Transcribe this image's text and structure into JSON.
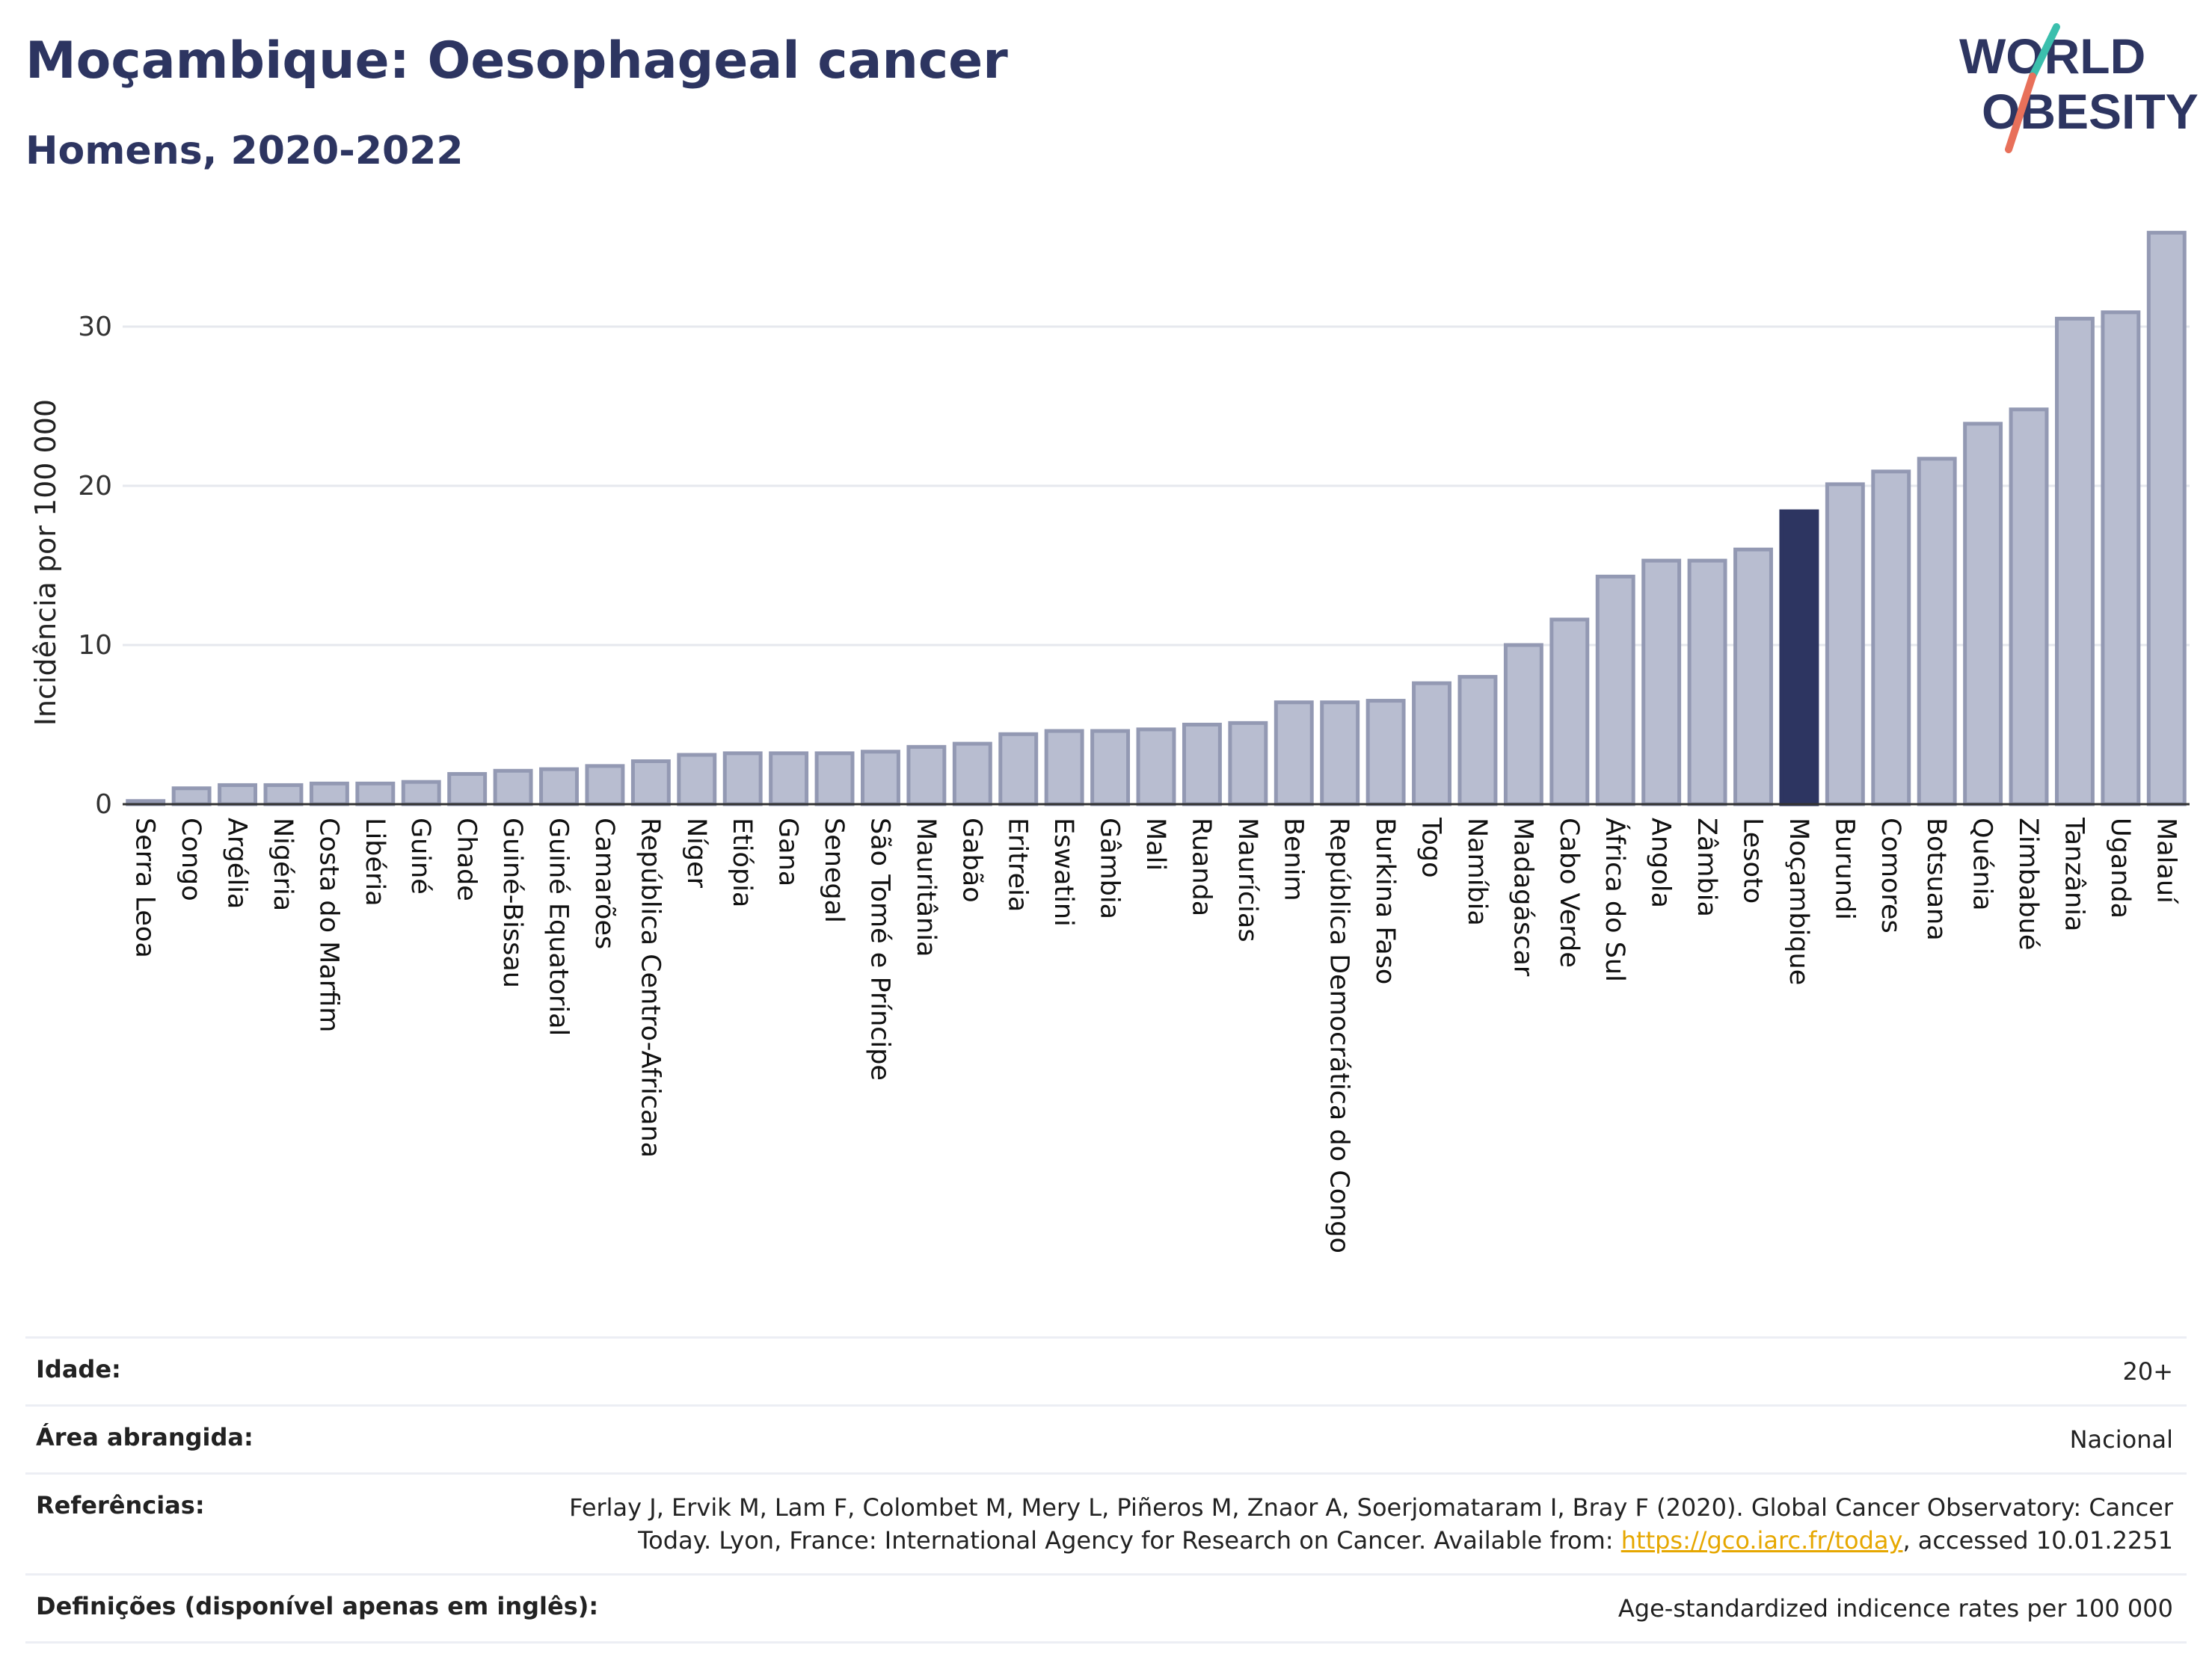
{
  "title": "Moçambique: Oesophageal cancer",
  "subtitle": "Homens, 2020-2022",
  "logo": {
    "line1": "WORLD",
    "line2": "OBESITY",
    "colors": [
      "#2d3561",
      "#3bbfad",
      "#e8705a"
    ]
  },
  "colors": {
    "bar": "#b8bdd0",
    "bar_edge": "#9399b3",
    "highlight": "#2d3561",
    "grid": "#e6e8ee",
    "axis": "#333333"
  },
  "chart_data": {
    "type": "bar",
    "ylabel": "Incidência por 100 000",
    "ylim": [
      0,
      36
    ],
    "yticks": [
      0,
      10,
      20,
      30
    ],
    "highlight": "Moçambique",
    "grid": true,
    "categories": [
      "Serra Leoa",
      "Congo",
      "Argélia",
      "Nigéria",
      "Costa do Marfim",
      "Libéria",
      "Guiné",
      "Chade",
      "Guiné-Bissau",
      "Guiné Equatorial",
      "Camarões",
      "República Centro-Africana",
      "Níger",
      "Etiópia",
      "Gana",
      "Senegal",
      "São Tomé e Príncipe",
      "Mauritânia",
      "Gabão",
      "Eritreia",
      "Eswatini",
      "Gâmbia",
      "Mali",
      "Ruanda",
      "Maurícias",
      "Benim",
      "República Democrática do Congo",
      "Burkina Faso",
      "Togo",
      "Namíbia",
      "Madagáscar",
      "Cabo Verde",
      "África do Sul",
      "Angola",
      "Zâmbia",
      "Lesoto",
      "Moçambique",
      "Burundi",
      "Comores",
      "Botsuana",
      "Quénia",
      "Zimbabué",
      "Tanzânia",
      "Uganda",
      "Malauí"
    ],
    "values": [
      0.2,
      1.0,
      1.2,
      1.2,
      1.3,
      1.3,
      1.4,
      1.9,
      2.1,
      2.2,
      2.4,
      2.7,
      3.1,
      3.2,
      3.2,
      3.2,
      3.3,
      3.6,
      3.8,
      4.4,
      4.6,
      4.6,
      4.7,
      5.0,
      5.1,
      6.4,
      6.4,
      6.5,
      7.6,
      8.0,
      10.0,
      11.6,
      14.3,
      15.3,
      15.3,
      16.0,
      18.4,
      20.1,
      20.9,
      21.7,
      23.9,
      24.8,
      30.5,
      30.9,
      35.9
    ]
  },
  "info": {
    "age_label": "Idade:",
    "age_value": "20+",
    "area_label": "Área abrangida:",
    "area_value": "Nacional",
    "ref_label": "Referências:",
    "ref_text_1": "Ferlay J, Ervik M, Lam F, Colombet M, Mery L, Piñeros M, Znaor A, Soerjomataram I, Bray F (2020). Global Cancer Observatory: Cancer Today. Lyon, France: International Agency for Research on Cancer. Available from: ",
    "ref_link": "https://gco.iarc.fr/today",
    "ref_text_2": ", accessed 10.01.2251",
    "def_label": "Definições (disponível apenas em inglês):",
    "def_value": "Age-standardized indicence rates per 100 000"
  }
}
